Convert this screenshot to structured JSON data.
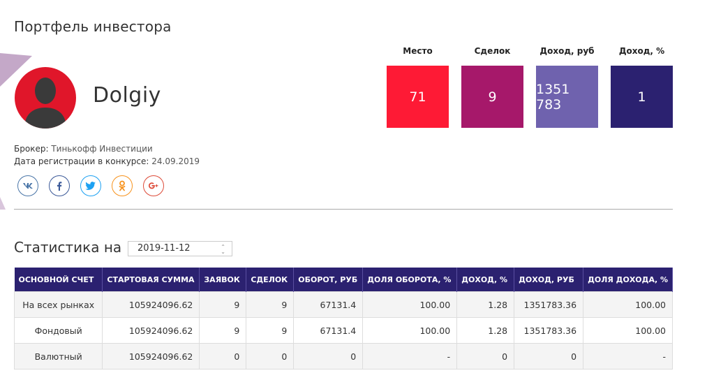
{
  "header": {
    "title": "Портфель инвестора"
  },
  "profile": {
    "username": "Dolgiy",
    "broker_label": "Брокер:",
    "broker_value": "Тинькофф Инвестиции",
    "reg_label": "Дата регистрации в конкурсе:",
    "reg_value": "24.09.2019"
  },
  "stats": [
    {
      "label": "Место",
      "value": "71",
      "color": "#fe1a35"
    },
    {
      "label": "Сделок",
      "value": "9",
      "color": "#a6186a"
    },
    {
      "label": "Доход, руб",
      "value": "1351 783",
      "color": "#6f62ae"
    },
    {
      "label": "Доход, %",
      "value": "1",
      "color": "#2b2170"
    }
  ],
  "social": [
    {
      "icon": "vk-icon",
      "color": "#4a76a8"
    },
    {
      "icon": "facebook-icon",
      "color": "#3b5998"
    },
    {
      "icon": "twitter-icon",
      "color": "#1da1f2"
    },
    {
      "icon": "odnoklassniki-icon",
      "color": "#f7931e"
    },
    {
      "icon": "google-plus-icon",
      "color": "#dd4b39"
    }
  ],
  "statistics": {
    "title": "Статистика на",
    "date": "2019-11-12",
    "columns": [
      "ОСНОВНОЙ СЧЕТ",
      "СТАРТОВАЯ СУММА",
      "ЗАЯВОК",
      "СДЕЛОК",
      "ОБОРОТ, РУБ",
      "ДОЛЯ ОБОРОТА, %",
      "ДОХОД, %",
      "ДОХОД, РУБ",
      "ДОЛЯ ДОХОДА, %"
    ],
    "rows": [
      [
        "На всех рынках",
        "105924096.62",
        "9",
        "9",
        "67131.4",
        "100.00",
        "1.28",
        "1351783.36",
        "100.00"
      ],
      [
        "Фондовый",
        "105924096.62",
        "9",
        "9",
        "67131.4",
        "100.00",
        "1.28",
        "1351783.36",
        "100.00"
      ],
      [
        "Валютный",
        "105924096.62",
        "0",
        "0",
        "0",
        "-",
        "0",
        "0",
        "-"
      ]
    ]
  }
}
